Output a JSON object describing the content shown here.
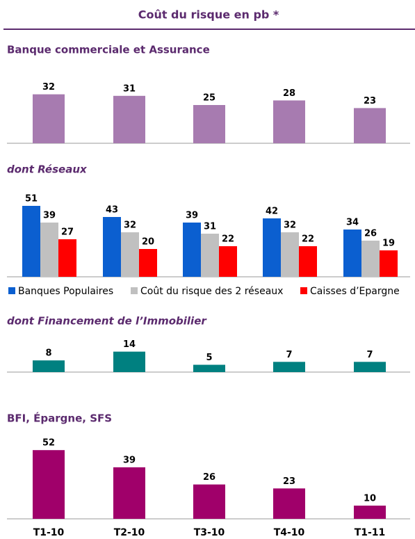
{
  "title": "Coût du risque en pb *",
  "categories": [
    "T1-10",
    "T2-10",
    "T3-10",
    "T4-10",
    "T1-11"
  ],
  "chart_data": [
    {
      "type": "bar",
      "title": "Banque commerciale et Assurance",
      "values": [
        32,
        31,
        25,
        28,
        23
      ],
      "color": "#a77bb0"
    },
    {
      "type": "grouped_bar",
      "title": "dont Réseaux",
      "series": [
        {
          "name": "Banques Populaires",
          "color": "#0b5fd0",
          "values": [
            51,
            43,
            39,
            42,
            34
          ]
        },
        {
          "name": "Coût du risque des 2 réseaux",
          "color": "#c0c0c0",
          "values": [
            39,
            32,
            31,
            32,
            26
          ]
        },
        {
          "name": "Caisses d’Epargne",
          "color": "#ff0000",
          "values": [
            27,
            20,
            22,
            22,
            19
          ]
        }
      ]
    },
    {
      "type": "bar",
      "title": "dont Financement de l’Immobilier",
      "values": [
        8,
        14,
        5,
        7,
        7
      ],
      "color": "#008080"
    },
    {
      "type": "bar",
      "title": "BFI, Épargne, SFS",
      "values": [
        52,
        39,
        26,
        23,
        10
      ],
      "color": "#a0006a"
    }
  ]
}
